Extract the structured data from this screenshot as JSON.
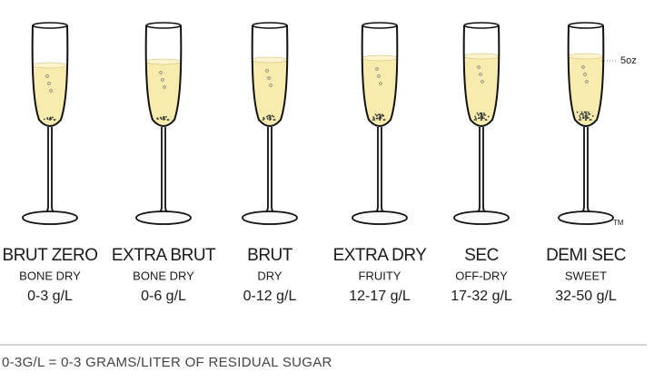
{
  "glasses": [
    {
      "name": "BRUT ZERO",
      "style": "BONE DRY",
      "range": "0-3 g/L"
    },
    {
      "name": "EXTRA BRUT",
      "style": "BONE DRY",
      "range": "0-6 g/L"
    },
    {
      "name": "BRUT",
      "style": "DRY",
      "range": "0-12 g/L"
    },
    {
      "name": "EXTRA DRY",
      "style": "FRUITY",
      "range": "12-17 g/L"
    },
    {
      "name": "SEC",
      "style": "OFF-DRY",
      "range": "17-32 g/L"
    },
    {
      "name": "DEMI SEC",
      "style": "SWEET",
      "range": "32-50 g/L"
    }
  ],
  "volume_note": "5oz",
  "trademark": "TM",
  "footnote": "0-3G/L = 0-3 GRAMS/LITER OF RESIDUAL SUGAR"
}
